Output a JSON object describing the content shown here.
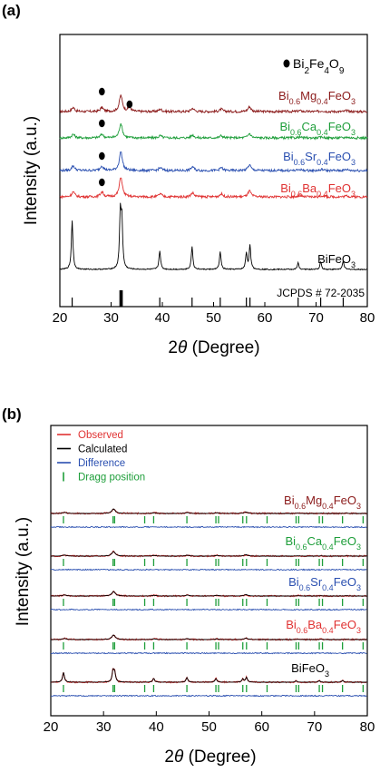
{
  "colors": {
    "mg": "#8b1a1a",
    "ca": "#1e9e3a",
    "sr": "#2a4fb0",
    "ba": "#e03232",
    "bfo": "#000000",
    "observed": "#e03232",
    "calculated": "#000000",
    "difference": "#2a4fb0",
    "bragg": "#1e9e3a"
  },
  "chart_data": [
    {
      "panel": "(a)",
      "type": "line",
      "xlabel_prefix": "2",
      "xlabel_theta": "θ",
      "xlabel_suffix": " (Degree)",
      "ylabel": "Intensity (a.u.)",
      "xlim": [
        20,
        80
      ],
      "xticks": [
        "20",
        "30",
        "40",
        "50",
        "60",
        "70",
        "80"
      ],
      "impurity_legend": {
        "base": "Bi",
        "sub1": "2",
        "mid": "Fe",
        "sub2": "4",
        "end": "O",
        "sub3": "9"
      },
      "reference_label": "JCPDS # 72-2035",
      "reference_peaks": [
        22.4,
        31.8,
        32.1,
        39.5,
        45.8,
        51.3,
        56.4,
        57.1,
        66.5,
        70.9,
        75.3
      ],
      "series": [
        {
          "key": "mg",
          "name_parts": [
            "Bi",
            "0.6",
            "Mg",
            "0.4",
            "FeO",
            "3"
          ],
          "impurity_markers": [
            28.2,
            33.6
          ]
        },
        {
          "key": "ca",
          "name_parts": [
            "Bi",
            "0.6",
            "Ca",
            "0.4",
            "FeO",
            "3"
          ],
          "impurity_markers": [
            28.2
          ]
        },
        {
          "key": "sr",
          "name_parts": [
            "Bi",
            "0.6",
            "Sr",
            "0.4",
            "FeO",
            "3"
          ],
          "impurity_markers": [
            28.2
          ]
        },
        {
          "key": "ba",
          "name_parts": [
            "Bi",
            "0.6",
            "Ba",
            "0.4",
            "FeO",
            "3"
          ],
          "impurity_markers": [
            28.2
          ]
        },
        {
          "key": "bfo",
          "name_parts": [
            "BiFeO",
            "3"
          ],
          "impurity_markers": []
        }
      ]
    },
    {
      "panel": "(b)",
      "type": "line",
      "xlabel_prefix": "2",
      "xlabel_theta": "θ",
      "xlabel_suffix": " (Degree)",
      "ylabel": "Intensity (a.u.)",
      "xlim": [
        20,
        80
      ],
      "xticks": [
        "20",
        "30",
        "40",
        "50",
        "60",
        "70",
        "80"
      ],
      "legend": [
        {
          "key": "observed",
          "label": "Observed",
          "style": "line"
        },
        {
          "key": "calculated",
          "label": "Calculated",
          "style": "line"
        },
        {
          "key": "difference",
          "label": "Difference",
          "style": "line"
        },
        {
          "key": "bragg",
          "label": "Dragg position",
          "style": "tick"
        }
      ],
      "bragg_positions": [
        22.4,
        31.8,
        32.1,
        37.8,
        39.5,
        45.8,
        51.3,
        51.8,
        56.4,
        57.1,
        61.0,
        66.5,
        67.0,
        70.9,
        71.5,
        75.3,
        79.2
      ],
      "series": [
        {
          "key": "mg",
          "name_parts": [
            "Bi",
            "0.6",
            "Mg",
            "0.4",
            "FeO",
            "3"
          ]
        },
        {
          "key": "ca",
          "name_parts": [
            "Bi",
            "0.6",
            "Ca",
            "0.4",
            "FeO",
            "3"
          ]
        },
        {
          "key": "sr",
          "name_parts": [
            "Bi",
            "0.6",
            "Sr",
            "0.4",
            "FeO",
            "3"
          ]
        },
        {
          "key": "ba",
          "name_parts": [
            "Bi",
            "0.6",
            "Ba",
            "0.4",
            "FeO",
            "3"
          ]
        },
        {
          "key": "bfo",
          "name_parts": [
            "BiFeO",
            "3"
          ]
        }
      ]
    }
  ]
}
